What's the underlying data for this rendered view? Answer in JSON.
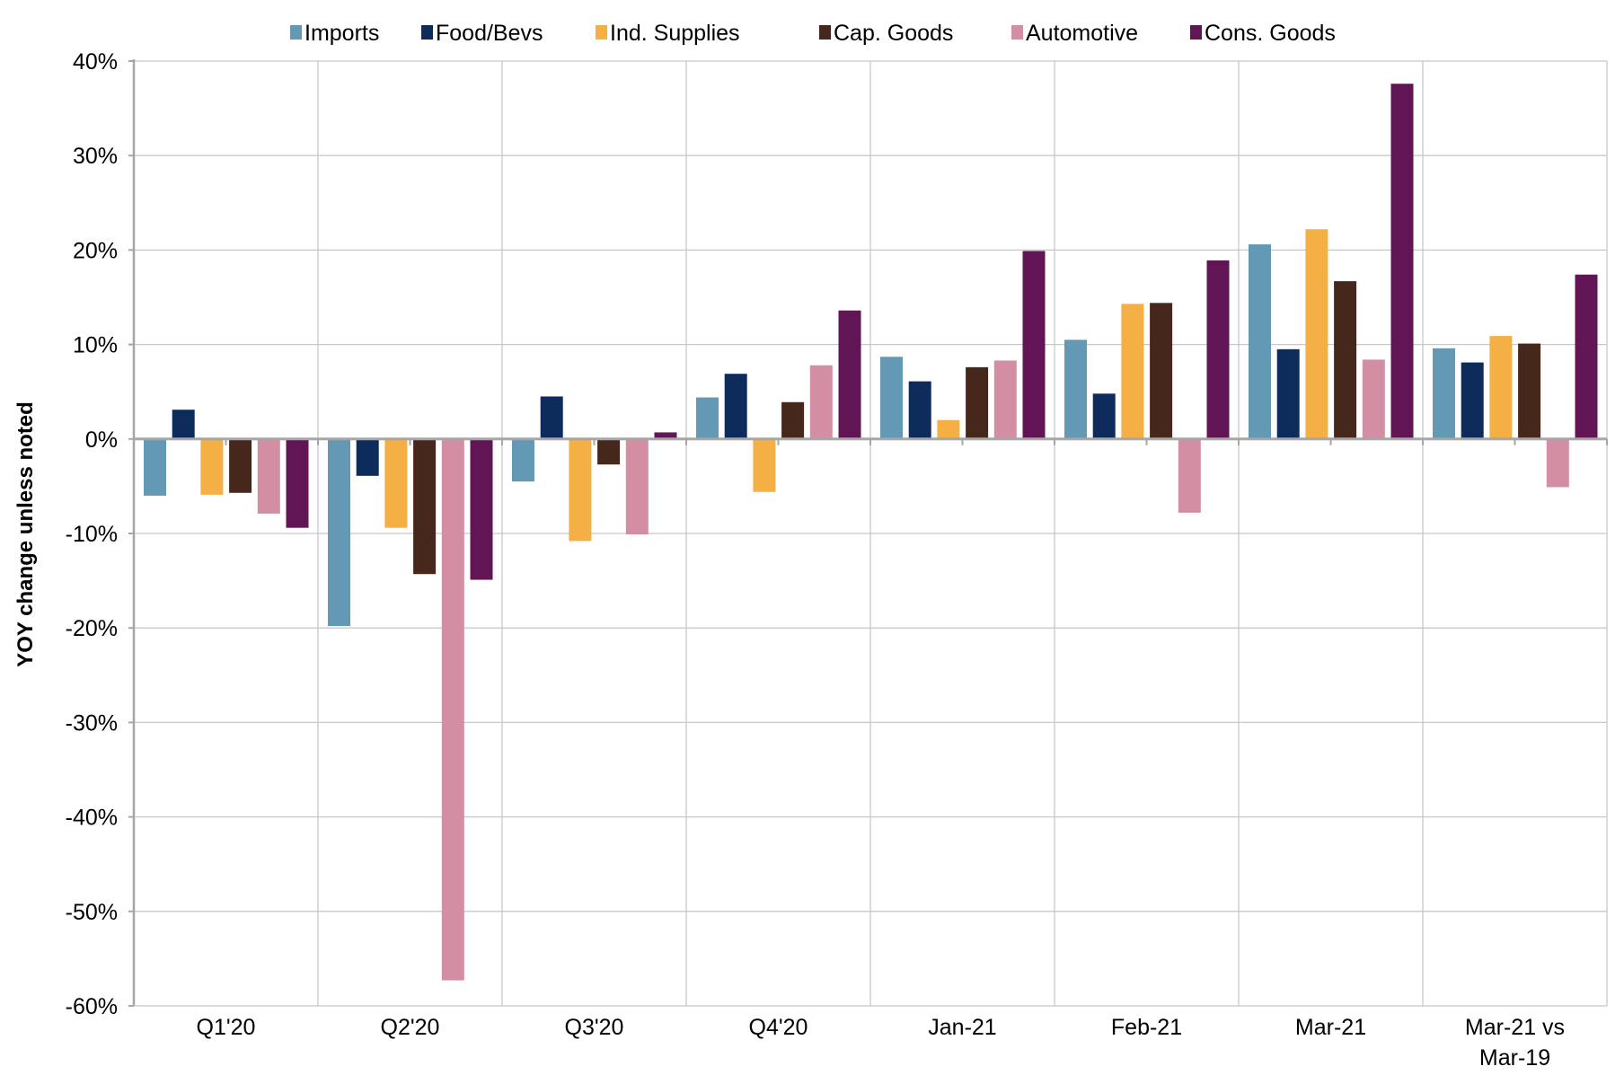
{
  "chart_data": {
    "type": "bar",
    "title": "",
    "xlabel": "",
    "ylabel": "YOY change unless noted",
    "ylim": [
      -60,
      40
    ],
    "yticks": [
      40,
      30,
      20,
      10,
      0,
      -10,
      -20,
      -30,
      -40,
      -50,
      -60
    ],
    "ytick_labels": [
      "40%",
      "30%",
      "20%",
      "10%",
      "0%",
      "-10%",
      "-20%",
      "-30%",
      "-40%",
      "-50%",
      "-60%"
    ],
    "grid": true,
    "legend_position": "top",
    "categories": [
      "Q1'20",
      "Q2'20",
      "Q3'20",
      "Q4'20",
      "Jan-21",
      "Feb-21",
      "Mar-21",
      "Mar-21 vs\nMar-19"
    ],
    "category_lines": [
      [
        "Q1'20"
      ],
      [
        "Q2'20"
      ],
      [
        "Q3'20"
      ],
      [
        "Q4'20"
      ],
      [
        "Jan-21"
      ],
      [
        "Feb-21"
      ],
      [
        "Mar-21"
      ],
      [
        "Mar-21 vs",
        "Mar-19"
      ]
    ],
    "series": [
      {
        "name": "Imports",
        "color": "#6399B5",
        "values": [
          -6.0,
          -19.8,
          -4.5,
          4.4,
          8.7,
          10.5,
          20.6,
          9.6
        ]
      },
      {
        "name": "Food/Bevs",
        "color": "#0D2C5C",
        "values": [
          3.1,
          -3.9,
          4.5,
          6.9,
          6.1,
          4.8,
          9.5,
          8.1
        ]
      },
      {
        "name": "Ind. Supplies",
        "color": "#F4AF45",
        "values": [
          -5.9,
          -9.4,
          -10.8,
          -5.6,
          2.0,
          14.3,
          22.2,
          10.9
        ]
      },
      {
        "name": "Cap. Goods",
        "color": "#46271B",
        "values": [
          -5.7,
          -14.3,
          -2.7,
          3.9,
          7.6,
          14.4,
          16.7,
          10.1
        ]
      },
      {
        "name": "Automotive",
        "color": "#D48EA4",
        "values": [
          -7.9,
          -57.3,
          -10.1,
          7.8,
          8.3,
          -7.8,
          8.4,
          -5.1
        ]
      },
      {
        "name": "Cons. Goods",
        "color": "#611555",
        "values": [
          -9.4,
          -14.9,
          0.7,
          13.6,
          19.9,
          18.9,
          37.6,
          17.4
        ]
      }
    ]
  }
}
